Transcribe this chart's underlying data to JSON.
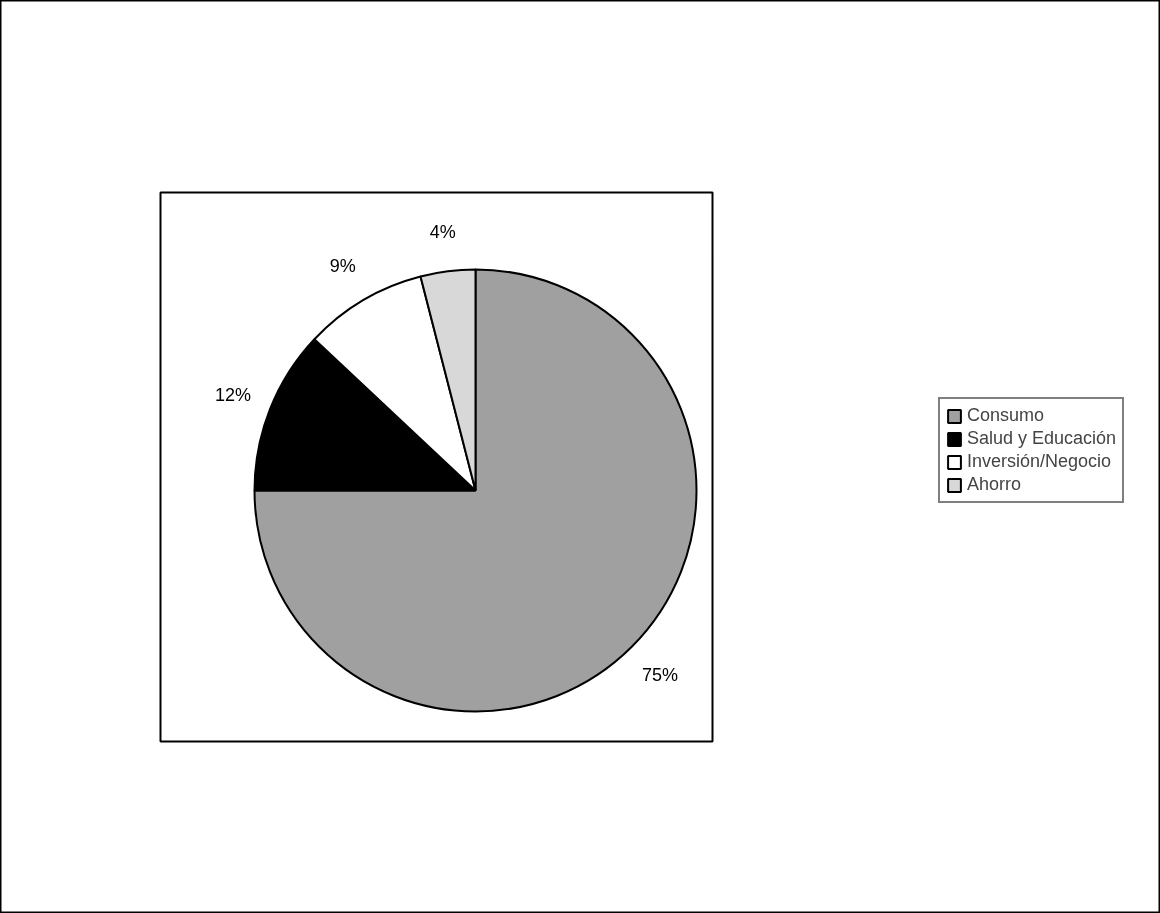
{
  "chart_data": {
    "type": "pie",
    "categories": [
      "Consumo",
      "Salud y Educación",
      "Inversión/Negocio",
      "Ahorro"
    ],
    "values": [
      75,
      12,
      9,
      4
    ],
    "colors": [
      "#a0a0a0",
      "#000000",
      "#ffffff",
      "#d8d8d8"
    ],
    "value_labels": [
      "75%",
      "12%",
      "9%",
      "4%"
    ],
    "legend": "right"
  }
}
